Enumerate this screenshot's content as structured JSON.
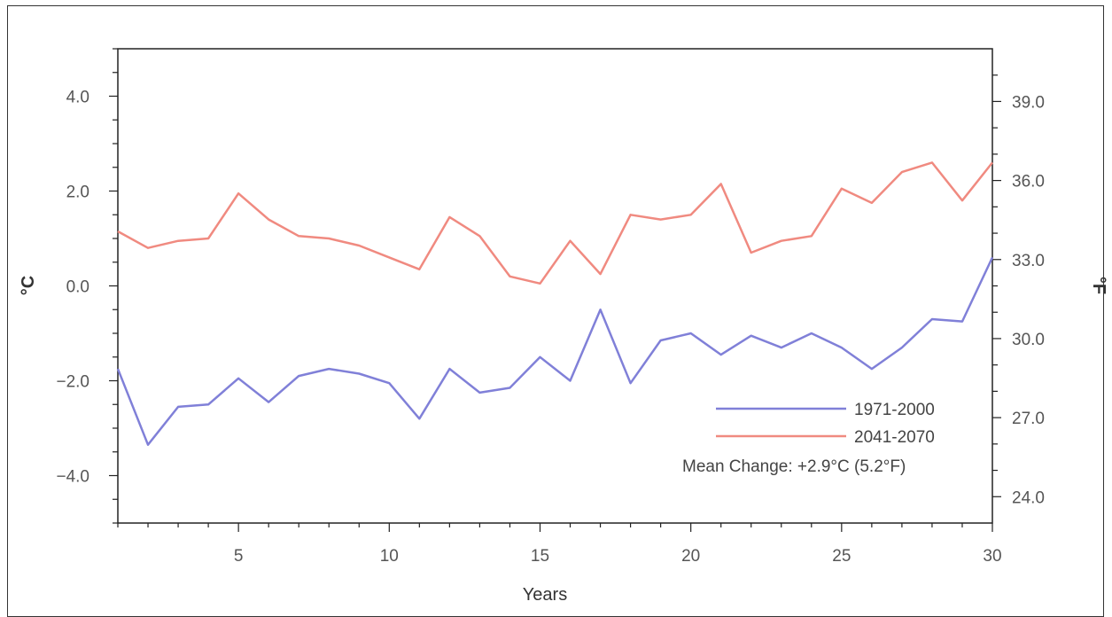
{
  "chart_data": {
    "type": "line",
    "title": "",
    "xlabel": "Years",
    "ylabel": "°C",
    "ylabel_right": "°F",
    "xlim": [
      1,
      30
    ],
    "ylim": [
      -5,
      5
    ],
    "ylim_right": [
      23,
      41
    ],
    "x_ticks": [
      5,
      10,
      15,
      20,
      25,
      30
    ],
    "x_tick_labels": [
      "5",
      "10",
      "15",
      "20",
      "25",
      "30"
    ],
    "y_ticks": [
      -4,
      -2,
      0,
      2,
      4
    ],
    "y_tick_labels": [
      "−4.0",
      "−2.0",
      "0.0",
      "2.0",
      "4.0"
    ],
    "y_right_ticks": [
      24,
      27,
      30,
      33,
      36,
      39
    ],
    "y_right_tick_labels": [
      "24.0",
      "27.0",
      "30.0",
      "33.0",
      "36.0",
      "39.0"
    ],
    "grid": false,
    "legend_position": "bottom-right",
    "annotation": "Mean Change: +2.9°C (5.2°F)",
    "x": [
      1,
      2,
      3,
      4,
      5,
      6,
      7,
      8,
      9,
      10,
      11,
      12,
      13,
      14,
      15,
      16,
      17,
      18,
      19,
      20,
      21,
      22,
      23,
      24,
      25,
      26,
      27,
      28,
      29,
      30
    ],
    "series": [
      {
        "name": "1971-2000",
        "color": "#8080d8",
        "values": [
          -1.75,
          -3.35,
          -2.55,
          -2.5,
          -1.95,
          -2.45,
          -1.9,
          -1.75,
          -1.85,
          -2.05,
          -2.8,
          -1.75,
          -2.25,
          -2.15,
          -1.5,
          -2.0,
          -0.5,
          -2.05,
          -1.15,
          -1.0,
          -1.45,
          -1.05,
          -1.3,
          -1.0,
          -1.3,
          -1.75,
          -1.3,
          -0.7,
          -0.75,
          0.6
        ]
      },
      {
        "name": "2041-2070",
        "color": "#f08a80",
        "values": [
          1.15,
          0.8,
          0.95,
          1.0,
          1.95,
          1.4,
          1.05,
          1.0,
          0.85,
          0.6,
          0.35,
          1.45,
          1.05,
          0.2,
          0.05,
          0.95,
          0.25,
          1.5,
          1.4,
          1.5,
          2.15,
          0.7,
          0.95,
          1.05,
          2.05,
          1.75,
          2.4,
          2.6,
          1.8,
          2.6
        ]
      }
    ]
  }
}
